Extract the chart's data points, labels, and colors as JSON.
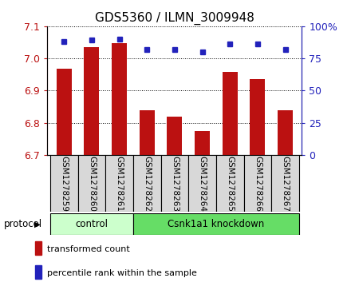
{
  "title": "GDS5360 / ILMN_3009948",
  "samples": [
    "GSM1278259",
    "GSM1278260",
    "GSM1278261",
    "GSM1278262",
    "GSM1278263",
    "GSM1278264",
    "GSM1278265",
    "GSM1278266",
    "GSM1278267"
  ],
  "bar_values": [
    6.968,
    7.035,
    7.048,
    6.84,
    6.82,
    6.775,
    6.958,
    6.935,
    6.84
  ],
  "percentile_values": [
    88,
    89,
    90,
    82,
    82,
    80,
    86,
    86,
    82
  ],
  "bar_color": "#bb1111",
  "dot_color": "#2222bb",
  "ylim_left": [
    6.7,
    7.1
  ],
  "ylim_right": [
    0,
    100
  ],
  "yticks_left": [
    6.7,
    6.8,
    6.9,
    7.0,
    7.1
  ],
  "yticks_right": [
    0,
    25,
    50,
    75,
    100
  ],
  "ytick_right_labels": [
    "0",
    "25",
    "50",
    "75",
    "100%"
  ],
  "groups": [
    {
      "label": "control",
      "start": 0,
      "end": 3,
      "color": "#ccffcc"
    },
    {
      "label": "Csnk1a1 knockdown",
      "start": 3,
      "end": 9,
      "color": "#66dd66"
    }
  ],
  "protocol_label": "protocol",
  "legend_bar_label": "transformed count",
  "legend_dot_label": "percentile rank within the sample",
  "bar_width": 0.55,
  "sample_box_color": "#d8d8d8",
  "title_fontsize": 11,
  "axis_fontsize": 9,
  "label_fontsize": 7.5,
  "proto_fontsize": 8.5,
  "legend_fontsize": 8
}
